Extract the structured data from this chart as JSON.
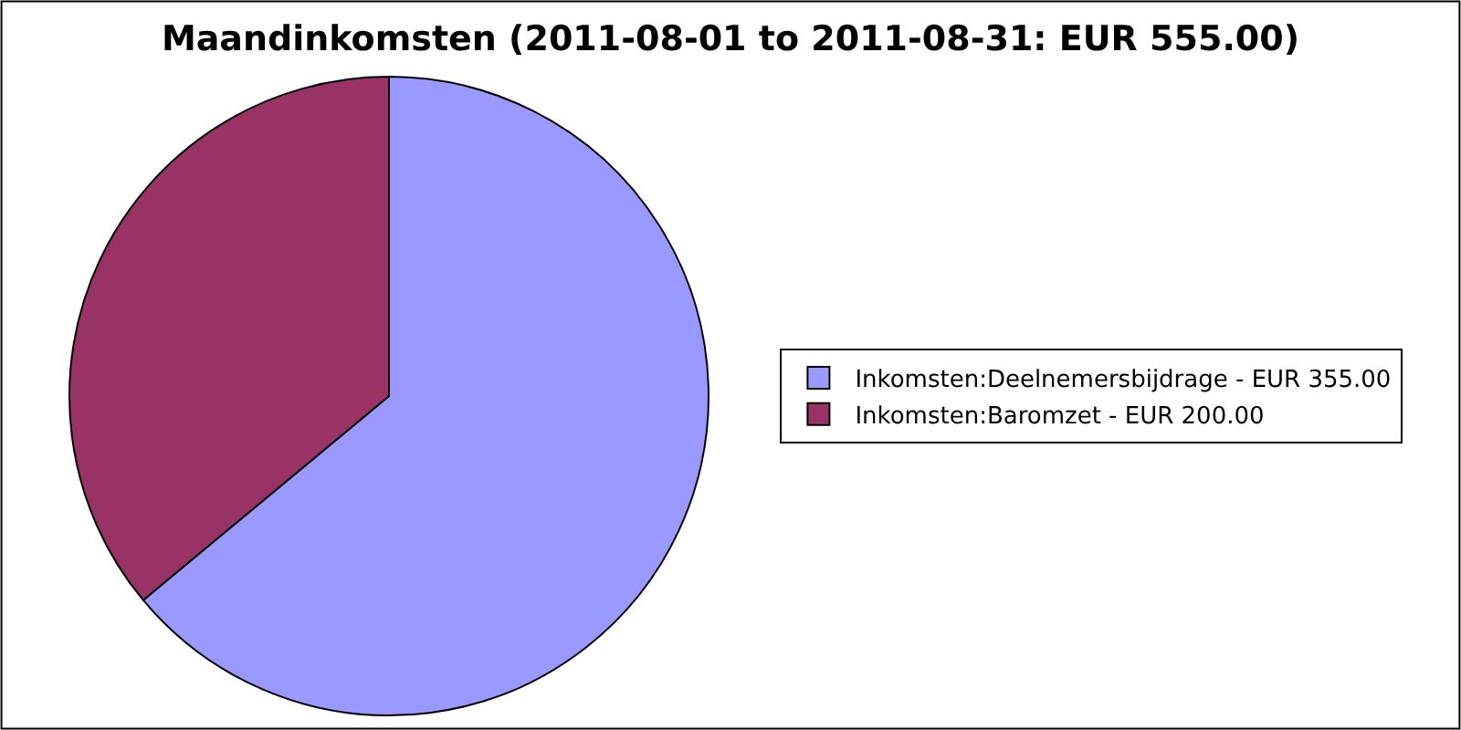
{
  "chart_data": {
    "type": "pie",
    "title": "Maandinkomsten (2011-08-01 to 2011-08-31: EUR 555.00)",
    "categories": [
      "Inkomsten:Deelnemersbijdrage - EUR 355.00",
      "Inkomsten:Baromzet - EUR 200.00"
    ],
    "values": [
      355,
      200
    ],
    "colors": [
      "#9999ff",
      "#993366"
    ],
    "legend": "right"
  }
}
